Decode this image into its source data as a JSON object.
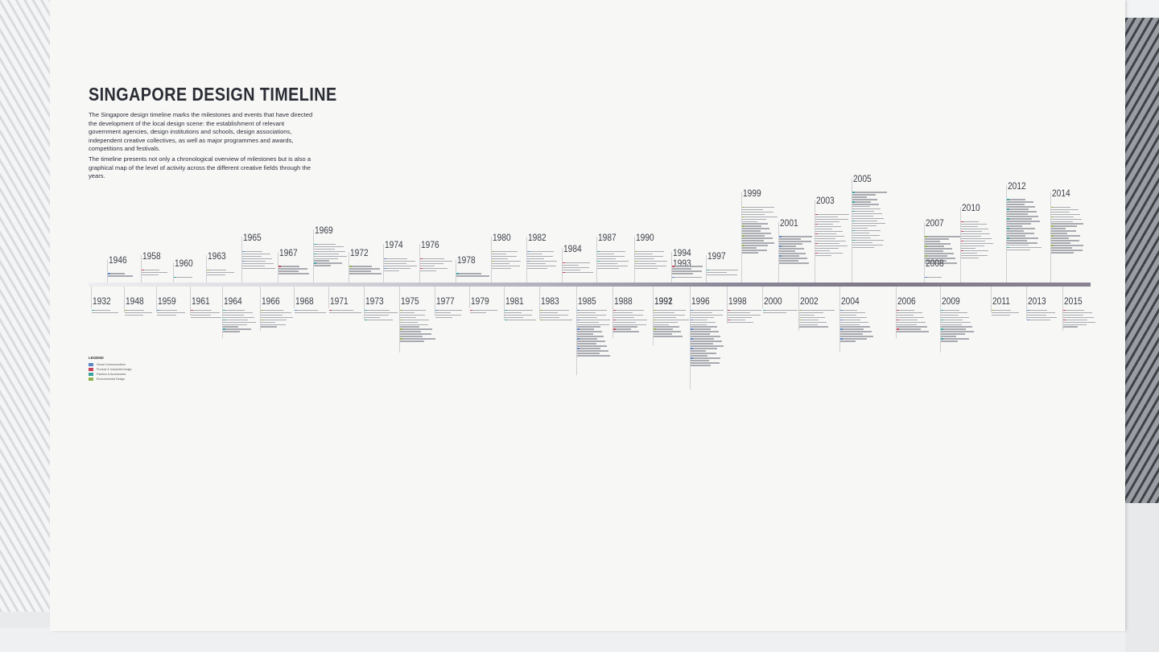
{
  "title": "SINGAPORE DESIGN TIMELINE",
  "intro": [
    "The Singapore design timeline marks the milestones and events that have directed the development of the local design scene: the establishment of relevant government agencies, design institutions and schools, design associations, independent creative collectives, as well as major programmes and awards, competitions and festivals.",
    "The timeline presents not only a chronological overview of milestones but is also a graphical map of the level of activity across the different creative fields through the years."
  ],
  "legend": {
    "title": "LEGEND",
    "items": [
      {
        "label": "Visual Communication",
        "color": "#5b86c4"
      },
      {
        "label": "Product & Industrial Design",
        "color": "#c9415a"
      },
      {
        "label": "Fashion & Accessories",
        "color": "#3aa3a0"
      },
      {
        "label": "Environmental Design",
        "color": "#8fb04a"
      }
    ]
  },
  "years_above": [
    {
      "year": "1946",
      "entries": 2
    },
    {
      "year": "1958",
      "entries": 3
    },
    {
      "year": "1960",
      "entries": 1
    },
    {
      "year": "1963",
      "entries": 3
    },
    {
      "year": "1965",
      "entries": 8
    },
    {
      "year": "1967",
      "entries": 4
    },
    {
      "year": "1969",
      "entries": 10
    },
    {
      "year": "1972",
      "entries": 4
    },
    {
      "year": "1974",
      "entries": 6
    },
    {
      "year": "1976",
      "entries": 6
    },
    {
      "year": "1978",
      "entries": 2
    },
    {
      "year": "1980",
      "entries": 8
    },
    {
      "year": "1982",
      "entries": 8
    },
    {
      "year": "1984",
      "entries": 5
    },
    {
      "year": "1987",
      "entries": 8
    },
    {
      "year": "1990",
      "entries": 8
    },
    {
      "year": "1993",
      "entries": 1
    },
    {
      "year": "1994",
      "entries": 4
    },
    {
      "year": "1997",
      "entries": 3
    },
    {
      "year": "1999",
      "entries": 20
    },
    {
      "year": "2001",
      "entries": 12
    },
    {
      "year": "2003",
      "entries": 18
    },
    {
      "year": "2005",
      "entries": 24
    },
    {
      "year": "2007",
      "entries": 12
    },
    {
      "year": "2008",
      "entries": 1
    },
    {
      "year": "2010",
      "entries": 16
    },
    {
      "year": "2012",
      "entries": 22
    },
    {
      "year": "2014",
      "entries": 20
    }
  ],
  "years_below": [
    {
      "year": "1932",
      "entries": 2
    },
    {
      "year": "1948",
      "entries": 3
    },
    {
      "year": "1959",
      "entries": 3
    },
    {
      "year": "1961",
      "entries": 4
    },
    {
      "year": "1964",
      "entries": 10
    },
    {
      "year": "1966",
      "entries": 8
    },
    {
      "year": "1968",
      "entries": 2
    },
    {
      "year": "1971",
      "entries": 2
    },
    {
      "year": "1973",
      "entries": 5
    },
    {
      "year": "1975",
      "entries": 14
    },
    {
      "year": "1977",
      "entries": 4
    },
    {
      "year": "1979",
      "entries": 2
    },
    {
      "year": "1981",
      "entries": 5
    },
    {
      "year": "1983",
      "entries": 5
    },
    {
      "year": "1985",
      "entries": 20
    },
    {
      "year": "1988",
      "entries": 10
    },
    {
      "year": "1991",
      "entries": 2
    },
    {
      "year": "1992",
      "entries": 12
    },
    {
      "year": "1996",
      "entries": 24
    },
    {
      "year": "1998",
      "entries": 6
    },
    {
      "year": "2000",
      "entries": 2
    },
    {
      "year": "2002",
      "entries": 8
    },
    {
      "year": "2004",
      "entries": 14
    },
    {
      "year": "2006",
      "entries": 10
    },
    {
      "year": "2009",
      "entries": 14
    },
    {
      "year": "2011",
      "entries": 3
    },
    {
      "year": "2013",
      "entries": 5
    },
    {
      "year": "2015",
      "entries": 8
    }
  ]
}
